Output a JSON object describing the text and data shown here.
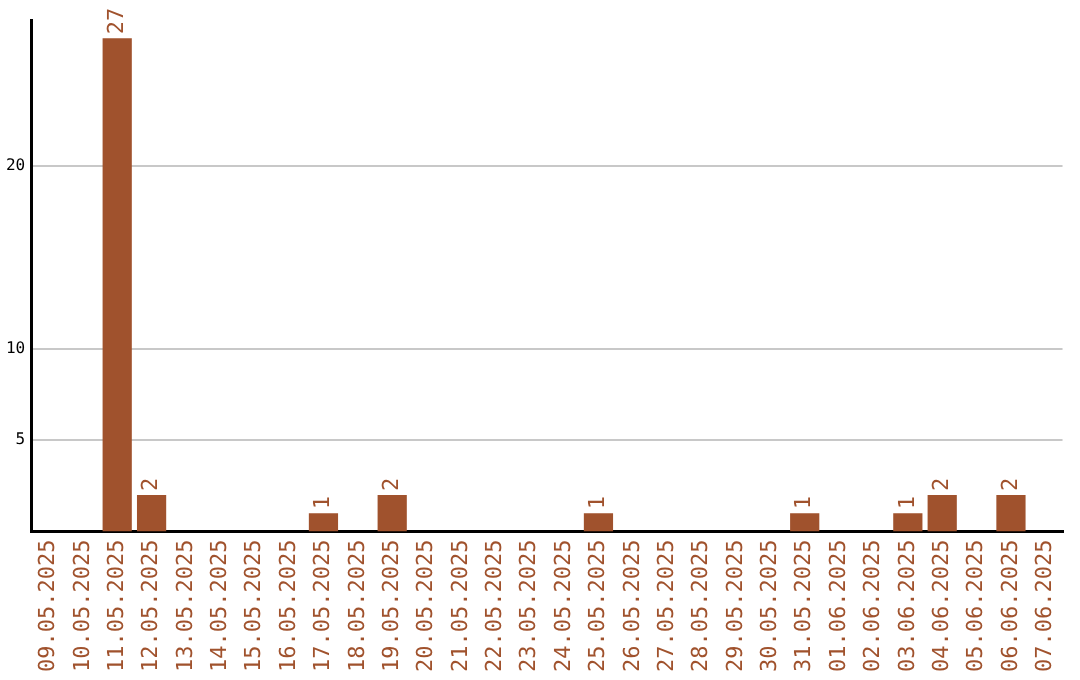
{
  "chart_data": {
    "type": "bar",
    "categories": [
      "09.05.2025",
      "10.05.2025",
      "11.05.2025",
      "12.05.2025",
      "13.05.2025",
      "14.05.2025",
      "15.05.2025",
      "16.05.2025",
      "17.05.2025",
      "18.05.2025",
      "19.05.2025",
      "20.05.2025",
      "21.05.2025",
      "22.05.2025",
      "23.05.2025",
      "24.05.2025",
      "25.05.2025",
      "26.05.2025",
      "27.05.2025",
      "28.05.2025",
      "29.05.2025",
      "30.05.2025",
      "31.05.2025",
      "01.06.2025",
      "02.06.2025",
      "03.06.2025",
      "04.06.2025",
      "05.06.2025",
      "06.06.2025",
      "07.06.2025"
    ],
    "values": [
      null,
      null,
      27,
      2,
      null,
      null,
      null,
      null,
      1,
      null,
      2,
      null,
      null,
      null,
      null,
      null,
      1,
      null,
      null,
      null,
      null,
      null,
      1,
      null,
      null,
      1,
      2,
      null,
      2,
      null
    ],
    "color": "#a0522d",
    "ylim": [
      0,
      28
    ],
    "yticks": [
      5,
      10,
      20
    ],
    "grid": "y",
    "legend": false,
    "data_labels": true
  }
}
